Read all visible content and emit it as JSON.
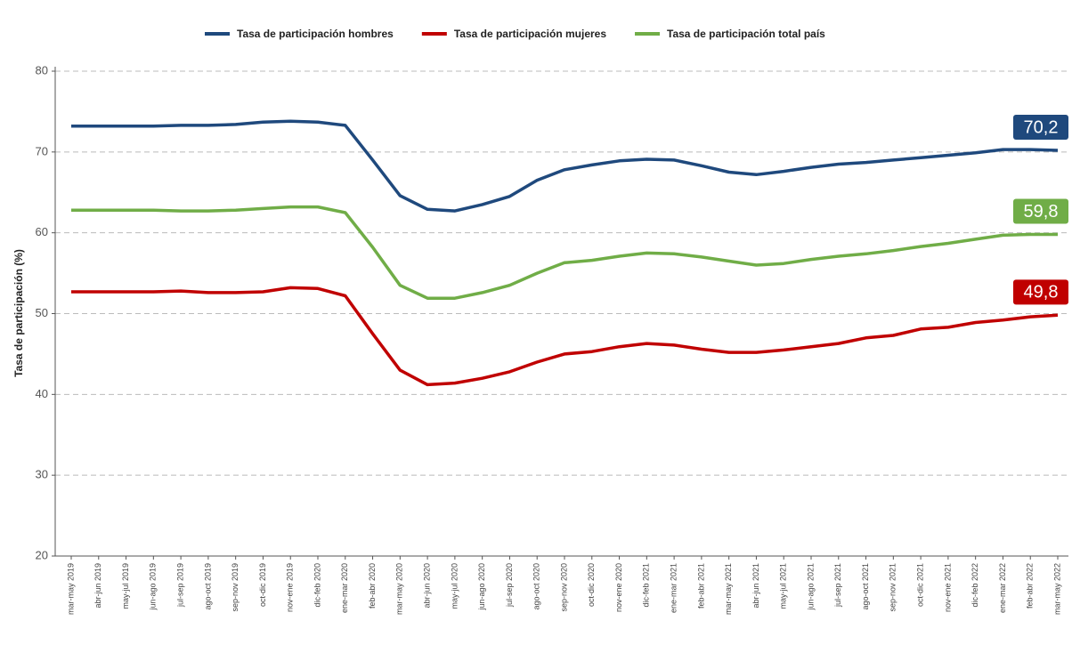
{
  "chart_data": {
    "type": "line",
    "y_label": "Tasa de participación (%)",
    "categories": [
      "mar-may 2019",
      "abr-jun 2019",
      "may-jul 2019",
      "jun-ago 2019",
      "jul-sep 2019",
      "ago-oct 2019",
      "sep-nov 2019",
      "oct-dic 2019",
      "nov-ene 2019",
      "dic-feb 2020",
      "ene-mar 2020",
      "feb-abr 2020",
      "mar-may 2020",
      "abr-jun 2020",
      "may-jul 2020",
      "jun-ago 2020",
      "jul-sep 2020",
      "ago-oct 2020",
      "sep-nov 2020",
      "oct-dic 2020",
      "nov-ene 2020",
      "dic-feb 2021",
      "ene-mar 2021",
      "feb-abr 2021",
      "mar-may 2021",
      "abr-jun 2021",
      "may-jul 2021",
      "jun-ago 2021",
      "jul-sep 2021",
      "ago-oct 2021",
      "sep-nov 2021",
      "oct-dic 2021",
      "nov-ene 2021",
      "dic-feb 2022",
      "ene-mar 2022",
      "feb-abr 2022",
      "mar-may 2022"
    ],
    "series": [
      {
        "name": "Tasa de participación hombres",
        "color": "#1f497d",
        "values": [
          73.2,
          73.2,
          73.2,
          73.2,
          73.3,
          73.3,
          73.4,
          73.7,
          73.8,
          73.7,
          73.3,
          69.0,
          64.6,
          62.9,
          62.7,
          63.5,
          64.5,
          66.5,
          67.8,
          68.4,
          68.9,
          69.1,
          69.0,
          68.3,
          67.5,
          67.2,
          67.6,
          68.1,
          68.5,
          68.7,
          69.0,
          69.3,
          69.6,
          69.9,
          70.3,
          70.3,
          70.2
        ],
        "value_labels": [
          null,
          null,
          null,
          null,
          null,
          null,
          null,
          null,
          null,
          null,
          null,
          null,
          null,
          null,
          null,
          null,
          null,
          null,
          null,
          null,
          null,
          null,
          null,
          null,
          null,
          null,
          null,
          null,
          null,
          null,
          null,
          null,
          null,
          null,
          null,
          null,
          "70,2"
        ]
      },
      {
        "name": "Tasa de participación mujeres",
        "color": "#c00000",
        "values": [
          52.7,
          52.7,
          52.7,
          52.7,
          52.8,
          52.6,
          52.6,
          52.7,
          53.2,
          53.1,
          52.2,
          47.5,
          43.0,
          41.2,
          41.4,
          42.0,
          42.8,
          44.0,
          45.0,
          45.3,
          45.9,
          46.3,
          46.1,
          45.6,
          45.2,
          45.2,
          45.5,
          45.9,
          46.3,
          47.0,
          47.3,
          48.1,
          48.3,
          48.9,
          49.2,
          49.6,
          49.8
        ],
        "value_labels": [
          null,
          null,
          null,
          null,
          null,
          null,
          null,
          null,
          null,
          null,
          null,
          null,
          null,
          null,
          null,
          null,
          null,
          null,
          null,
          null,
          null,
          null,
          null,
          null,
          null,
          null,
          null,
          null,
          null,
          null,
          null,
          null,
          null,
          null,
          null,
          null,
          "49,8"
        ]
      },
      {
        "name": "Tasa de participación total país",
        "color": "#70ad47",
        "values": [
          62.8,
          62.8,
          62.8,
          62.8,
          62.7,
          62.7,
          62.8,
          63.0,
          63.2,
          63.2,
          62.5,
          58.2,
          53.5,
          51.9,
          51.9,
          52.6,
          53.5,
          55.0,
          56.3,
          56.6,
          57.1,
          57.5,
          57.4,
          57.0,
          56.5,
          56.0,
          56.2,
          56.7,
          57.1,
          57.4,
          57.8,
          58.3,
          58.7,
          59.2,
          59.7,
          59.8,
          59.8
        ],
        "value_labels": [
          null,
          null,
          null,
          null,
          null,
          null,
          null,
          null,
          null,
          null,
          null,
          null,
          null,
          null,
          null,
          null,
          null,
          null,
          null,
          null,
          null,
          null,
          null,
          null,
          null,
          null,
          null,
          null,
          null,
          null,
          null,
          null,
          null,
          null,
          null,
          null,
          "59,8"
        ]
      }
    ],
    "ylim": [
      20,
      80
    ],
    "yticks": [
      20,
      30,
      40,
      50,
      60,
      70,
      80
    ],
    "grid": true,
    "legend": "top"
  }
}
